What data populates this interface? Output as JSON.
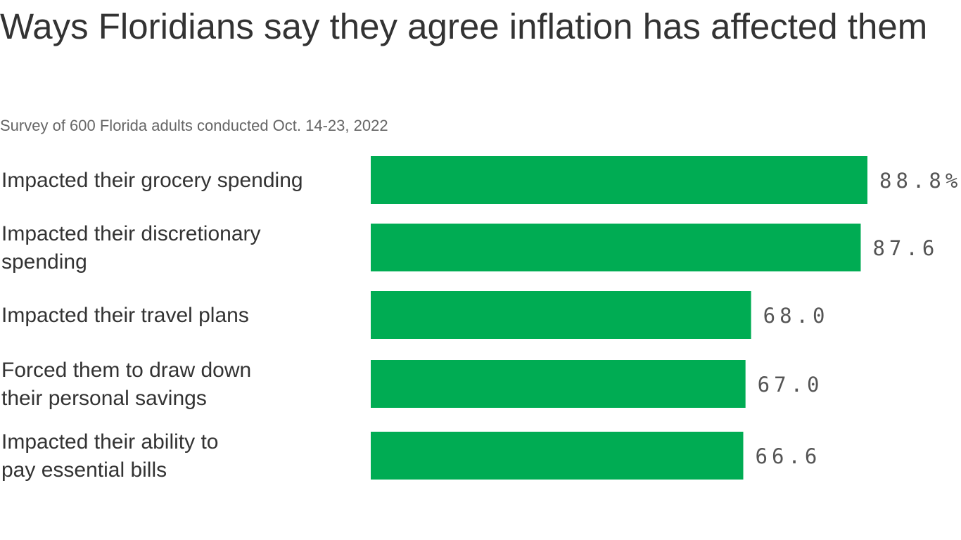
{
  "chart_data": {
    "type": "bar",
    "orientation": "horizontal",
    "title": "Ways Floridians say they agree inflation has affected them",
    "subtitle": "Survey of 600 Florida adults conducted Oct. 14-23, 2022",
    "categories": [
      [
        "Impacted their grocery spending"
      ],
      [
        "Impacted their discretionary",
        "spending"
      ],
      [
        "Impacted their travel plans"
      ],
      [
        "Forced them to draw down",
        "their personal savings"
      ],
      [
        "Impacted their ability to",
        "pay essential bills"
      ]
    ],
    "values": [
      88.8,
      87.6,
      68.0,
      67.0,
      66.6
    ],
    "value_labels": [
      "88.8%",
      "87.6",
      "68.0",
      "67.0",
      "66.6"
    ],
    "xlim": [
      0,
      100
    ],
    "grid": false,
    "bar_color": "#00ac53"
  }
}
